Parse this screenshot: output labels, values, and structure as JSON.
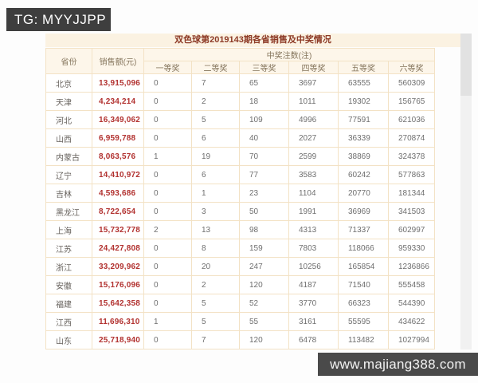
{
  "watermarks": {
    "tg_banner": "TG: MYYJJPP",
    "site_banner": "www.majiang388.com"
  },
  "table": {
    "title": "双色球第2019143期各省销售及中奖情况",
    "headers": {
      "province": "省份",
      "sales": "销售额(元)",
      "prize_group": "中奖注数(注)",
      "prizes": [
        "一等奖",
        "二等奖",
        "三等奖",
        "四等奖",
        "五等奖",
        "六等奖"
      ]
    },
    "rows": [
      {
        "province": "北京",
        "sales": "13,915,096",
        "prizes": [
          "0",
          "7",
          "65",
          "3697",
          "63555",
          "560309"
        ]
      },
      {
        "province": "天津",
        "sales": "4,234,214",
        "prizes": [
          "0",
          "2",
          "18",
          "1011",
          "19302",
          "156765"
        ]
      },
      {
        "province": "河北",
        "sales": "16,349,062",
        "prizes": [
          "0",
          "5",
          "109",
          "4996",
          "77591",
          "621036"
        ]
      },
      {
        "province": "山西",
        "sales": "6,959,788",
        "prizes": [
          "0",
          "6",
          "40",
          "2027",
          "36339",
          "270874"
        ]
      },
      {
        "province": "内蒙古",
        "sales": "8,063,576",
        "prizes": [
          "1",
          "19",
          "70",
          "2599",
          "38869",
          "324378"
        ]
      },
      {
        "province": "辽宁",
        "sales": "14,410,972",
        "prizes": [
          "0",
          "6",
          "77",
          "3583",
          "60242",
          "577863"
        ]
      },
      {
        "province": "吉林",
        "sales": "4,593,686",
        "prizes": [
          "0",
          "1",
          "23",
          "1104",
          "20770",
          "181344"
        ]
      },
      {
        "province": "黑龙江",
        "sales": "8,722,654",
        "prizes": [
          "0",
          "3",
          "50",
          "1991",
          "36969",
          "341503"
        ]
      },
      {
        "province": "上海",
        "sales": "15,732,778",
        "prizes": [
          "2",
          "13",
          "98",
          "4313",
          "71337",
          "602997"
        ]
      },
      {
        "province": "江苏",
        "sales": "24,427,808",
        "prizes": [
          "0",
          "8",
          "159",
          "7803",
          "118066",
          "959330"
        ]
      },
      {
        "province": "浙江",
        "sales": "33,209,962",
        "prizes": [
          "0",
          "20",
          "247",
          "10256",
          "165854",
          "1236866"
        ]
      },
      {
        "province": "安徽",
        "sales": "15,176,096",
        "prizes": [
          "0",
          "2",
          "120",
          "4187",
          "71540",
          "555458"
        ]
      },
      {
        "province": "福建",
        "sales": "15,642,358",
        "prizes": [
          "0",
          "5",
          "52",
          "3770",
          "66323",
          "544390"
        ]
      },
      {
        "province": "江西",
        "sales": "11,696,310",
        "prizes": [
          "1",
          "5",
          "55",
          "3161",
          "55595",
          "434622"
        ]
      },
      {
        "province": "山东",
        "sales": "25,718,940",
        "prizes": [
          "0",
          "7",
          "120",
          "6478",
          "113482",
          "1027994"
        ]
      }
    ]
  },
  "colors": {
    "banner_bg": "#3e3e3e",
    "site_banner_bg": "#4a4a4a",
    "title_bg": "#fbf2e2",
    "title_text": "#8d3a26",
    "header_bg": "#fdf6ea",
    "header_text": "#85755c",
    "border": "#f3e2c5",
    "sales_text": "#b23230",
    "data_text": "#6f6f6f"
  }
}
